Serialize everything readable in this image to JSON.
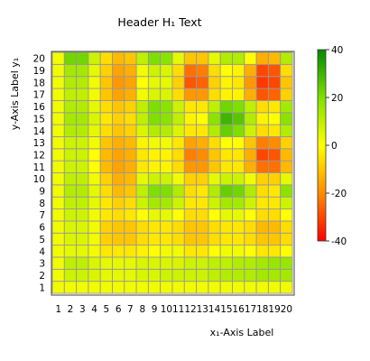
{
  "chart_data": {
    "type": "heatmap",
    "title": "Header H₁ Text",
    "xlabel": "x₁-Axis Label",
    "ylabel": "y-Axis Label y₁",
    "x": [
      1,
      2,
      3,
      4,
      5,
      6,
      7,
      8,
      9,
      10,
      11,
      12,
      13,
      14,
      15,
      16,
      17,
      18,
      19,
      20
    ],
    "y": [
      1,
      2,
      3,
      4,
      5,
      6,
      7,
      8,
      9,
      10,
      11,
      12,
      13,
      14,
      15,
      16,
      17,
      18,
      19,
      20
    ],
    "xlim": [
      1,
      20
    ],
    "ylim": [
      1,
      20
    ],
    "colorbar": {
      "min": -40,
      "max": 40,
      "ticks": [
        -40,
        -20,
        0,
        20,
        40
      ],
      "colors": [
        "#ff0000",
        "#ff8c00",
        "#ffff00",
        "#7fe000",
        "#008a00"
      ]
    },
    "grid": true,
    "z_rows_bottom_to_top": [
      [
        2,
        2,
        2,
        2,
        2,
        2,
        2,
        2,
        2,
        2,
        2,
        2,
        2,
        2,
        2,
        2,
        2,
        2,
        2,
        2
      ],
      [
        2,
        8,
        8,
        6,
        4,
        4,
        4,
        6,
        6,
        8,
        8,
        8,
        8,
        10,
        12,
        12,
        12,
        14,
        14,
        14
      ],
      [
        2,
        10,
        10,
        6,
        4,
        4,
        4,
        6,
        6,
        6,
        6,
        8,
        8,
        10,
        10,
        12,
        12,
        14,
        16,
        16
      ],
      [
        2,
        4,
        4,
        2,
        -4,
        -4,
        -4,
        -2,
        0,
        2,
        2,
        -4,
        -4,
        0,
        2,
        2,
        0,
        -4,
        -4,
        0
      ],
      [
        2,
        6,
        6,
        2,
        -8,
        -10,
        -10,
        -6,
        -4,
        -4,
        -6,
        -10,
        -10,
        -6,
        -4,
        -4,
        -6,
        -10,
        -10,
        -6
      ],
      [
        2,
        6,
        6,
        2,
        -8,
        -10,
        -10,
        -6,
        -4,
        -4,
        -6,
        -10,
        -10,
        -6,
        -4,
        -4,
        -6,
        -12,
        -12,
        -6
      ],
      [
        2,
        8,
        8,
        2,
        -4,
        -6,
        -4,
        0,
        4,
        4,
        0,
        -6,
        -6,
        0,
        4,
        4,
        0,
        -6,
        -6,
        0
      ],
      [
        2,
        10,
        10,
        4,
        -4,
        -8,
        -6,
        8,
        14,
        14,
        8,
        -4,
        -4,
        8,
        14,
        14,
        8,
        -4,
        -4,
        8
      ],
      [
        2,
        12,
        12,
        4,
        -6,
        -12,
        -10,
        10,
        20,
        20,
        12,
        -6,
        -4,
        12,
        24,
        22,
        12,
        -6,
        -4,
        18
      ],
      [
        2,
        10,
        10,
        2,
        -8,
        -14,
        -12,
        4,
        8,
        8,
        2,
        -8,
        -8,
        4,
        8,
        8,
        2,
        -8,
        -8,
        4
      ],
      [
        2,
        8,
        8,
        0,
        -12,
        -16,
        -14,
        -4,
        -2,
        -2,
        -6,
        -18,
        -18,
        -10,
        -4,
        -4,
        -14,
        -24,
        -24,
        -12
      ],
      [
        2,
        8,
        8,
        0,
        -12,
        -16,
        -14,
        -4,
        -2,
        -2,
        -6,
        -22,
        -20,
        -10,
        -4,
        -4,
        -14,
        -30,
        -28,
        -12
      ],
      [
        2,
        8,
        8,
        2,
        -10,
        -14,
        -12,
        -2,
        2,
        2,
        -4,
        -16,
        -14,
        -6,
        0,
        0,
        -10,
        -22,
        -20,
        -8
      ],
      [
        2,
        12,
        12,
        4,
        -6,
        -10,
        -8,
        6,
        12,
        12,
        6,
        -4,
        -4,
        12,
        24,
        20,
        8,
        -6,
        -4,
        12
      ],
      [
        2,
        14,
        14,
        6,
        -4,
        -8,
        -6,
        10,
        20,
        18,
        10,
        -2,
        0,
        18,
        30,
        26,
        12,
        -2,
        0,
        18
      ],
      [
        2,
        12,
        12,
        4,
        -6,
        -10,
        -8,
        10,
        20,
        18,
        8,
        -4,
        -4,
        10,
        22,
        20,
        10,
        -6,
        -4,
        14
      ],
      [
        2,
        10,
        10,
        2,
        -10,
        -16,
        -14,
        2,
        6,
        6,
        -6,
        -18,
        -18,
        -6,
        -2,
        -2,
        -14,
        -28,
        -26,
        -8
      ],
      [
        2,
        12,
        12,
        2,
        -10,
        -18,
        -16,
        0,
        4,
        4,
        -8,
        -28,
        -26,
        -8,
        -2,
        -4,
        -18,
        -32,
        -30,
        -10
      ],
      [
        2,
        14,
        14,
        4,
        -8,
        -16,
        -14,
        2,
        8,
        6,
        -6,
        -24,
        -22,
        -6,
        0,
        -2,
        -14,
        -30,
        -28,
        -6
      ],
      [
        2,
        22,
        22,
        8,
        -6,
        -12,
        -10,
        10,
        20,
        18,
        4,
        -10,
        -10,
        4,
        12,
        12,
        0,
        -14,
        -12,
        12
      ]
    ]
  }
}
